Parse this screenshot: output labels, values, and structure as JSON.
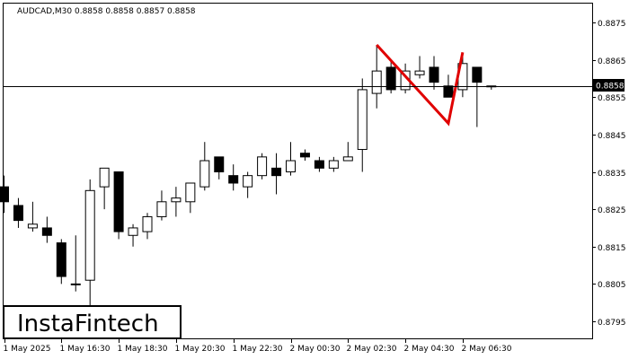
{
  "header": {
    "text": "AUDCAD,M30  0.8858 0.8858 0.8857 0.8858"
  },
  "logo": {
    "text": "InstaFintech"
  },
  "current_price_label": "0.8858",
  "colors": {
    "background": "#ffffff",
    "grid_border": "#000000",
    "bull_candle": "#ffffff",
    "bear_candle": "#000000",
    "pattern_line": "#e00000",
    "price_line": "#000000"
  },
  "chart_data": {
    "type": "candlestick",
    "symbol": "AUDCAD",
    "timeframe": "M30",
    "title": "AUDCAD,M30  0.8858 0.8858 0.8857 0.8858",
    "ylim": [
      0.87895,
      0.88815
    ],
    "ylim_note": "inverse mapping helper",
    "y_axis": {
      "min": 0.8789,
      "max": 0.8881,
      "tick_values": [
        0.8795,
        0.8805,
        0.8815,
        0.8825,
        0.8835,
        0.8845,
        0.8855,
        0.8865,
        0.8875
      ],
      "tick_labels": [
        "0.8795",
        "0.8805",
        "0.8815",
        "0.8825",
        "0.8835",
        "0.8845",
        "0.8855",
        "0.8865",
        "0.8875"
      ]
    },
    "x_axis": {
      "tick_labels": [
        "1 May 2025",
        "1 May 16:30",
        "1 May 18:30",
        "1 May 20:30",
        "1 May 22:30",
        "2 May 00:30",
        "2 May 02:30",
        "2 May 04:30",
        "2 May 06:30"
      ],
      "tick_candle_index": [
        0,
        4,
        8,
        12,
        16,
        20,
        24,
        28,
        32
      ]
    },
    "current_price": 0.8858,
    "candles": [
      {
        "o": 0.8831,
        "h": 0.8834,
        "l": 0.8824,
        "c": 0.8827
      },
      {
        "o": 0.8826,
        "h": 0.8828,
        "l": 0.882,
        "c": 0.8822
      },
      {
        "o": 0.882,
        "h": 0.8827,
        "l": 0.8819,
        "c": 0.8821
      },
      {
        "o": 0.882,
        "h": 0.8823,
        "l": 0.8816,
        "c": 0.8818
      },
      {
        "o": 0.8816,
        "h": 0.8817,
        "l": 0.8805,
        "c": 0.8807
      },
      {
        "o": 0.8805,
        "h": 0.8818,
        "l": 0.8803,
        "c": 0.8805
      },
      {
        "o": 0.8806,
        "h": 0.8833,
        "l": 0.8799,
        "c": 0.883
      },
      {
        "o": 0.8831,
        "h": 0.8836,
        "l": 0.8825,
        "c": 0.8836
      },
      {
        "o": 0.8835,
        "h": 0.8835,
        "l": 0.8817,
        "c": 0.8819
      },
      {
        "o": 0.8818,
        "h": 0.8821,
        "l": 0.8815,
        "c": 0.882
      },
      {
        "o": 0.8819,
        "h": 0.8824,
        "l": 0.8817,
        "c": 0.8823
      },
      {
        "o": 0.8823,
        "h": 0.883,
        "l": 0.8822,
        "c": 0.8827
      },
      {
        "o": 0.8827,
        "h": 0.8831,
        "l": 0.8823,
        "c": 0.8828
      },
      {
        "o": 0.8827,
        "h": 0.8832,
        "l": 0.8824,
        "c": 0.8832
      },
      {
        "o": 0.8831,
        "h": 0.8843,
        "l": 0.883,
        "c": 0.8838
      },
      {
        "o": 0.8839,
        "h": 0.8839,
        "l": 0.8833,
        "c": 0.8835
      },
      {
        "o": 0.8834,
        "h": 0.8837,
        "l": 0.883,
        "c": 0.8832
      },
      {
        "o": 0.8831,
        "h": 0.8835,
        "l": 0.8828,
        "c": 0.8834
      },
      {
        "o": 0.8834,
        "h": 0.884,
        "l": 0.8833,
        "c": 0.8839
      },
      {
        "o": 0.8836,
        "h": 0.884,
        "l": 0.8829,
        "c": 0.8834
      },
      {
        "o": 0.8835,
        "h": 0.8843,
        "l": 0.8834,
        "c": 0.8838
      },
      {
        "o": 0.884,
        "h": 0.8841,
        "l": 0.8838,
        "c": 0.8839
      },
      {
        "o": 0.8838,
        "h": 0.8839,
        "l": 0.8835,
        "c": 0.8836
      },
      {
        "o": 0.8836,
        "h": 0.8839,
        "l": 0.8835,
        "c": 0.8838
      },
      {
        "o": 0.8838,
        "h": 0.8843,
        "l": 0.8838,
        "c": 0.8839
      },
      {
        "o": 0.8841,
        "h": 0.886,
        "l": 0.8835,
        "c": 0.8857
      },
      {
        "o": 0.8856,
        "h": 0.8869,
        "l": 0.8852,
        "c": 0.8862
      },
      {
        "o": 0.8863,
        "h": 0.8865,
        "l": 0.8856,
        "c": 0.8857
      },
      {
        "o": 0.8857,
        "h": 0.8864,
        "l": 0.8856,
        "c": 0.8862
      },
      {
        "o": 0.8861,
        "h": 0.8866,
        "l": 0.886,
        "c": 0.8862
      },
      {
        "o": 0.8863,
        "h": 0.8866,
        "l": 0.8857,
        "c": 0.8859
      },
      {
        "o": 0.8858,
        "h": 0.8861,
        "l": 0.8855,
        "c": 0.8855
      },
      {
        "o": 0.8857,
        "h": 0.8866,
        "l": 0.8855,
        "c": 0.8864
      },
      {
        "o": 0.8863,
        "h": 0.8863,
        "l": 0.8847,
        "c": 0.8859
      },
      {
        "o": 0.8858,
        "h": 0.8858,
        "l": 0.8857,
        "c": 0.8858
      }
    ],
    "pattern_line": {
      "points": [
        {
          "candle_index": 26,
          "price": 0.8869
        },
        {
          "candle_index": 31,
          "price": 0.8848
        },
        {
          "candle_index": 32,
          "price": 0.8867
        }
      ]
    }
  }
}
